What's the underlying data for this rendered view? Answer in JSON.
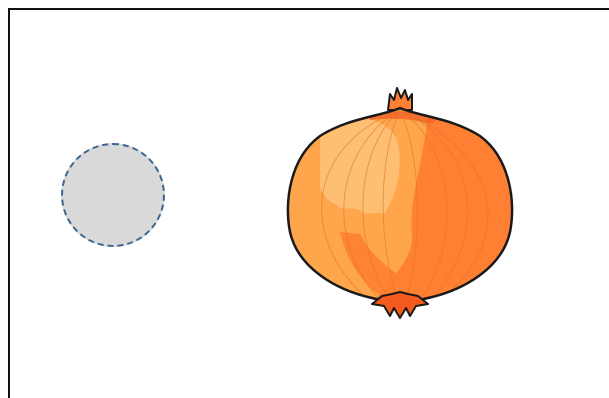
{
  "scene": {
    "drop_target": {
      "shape": "circle",
      "fill_color": "#d9d9d9",
      "border_color": "#3d6591",
      "border_style": "dashed"
    },
    "item": {
      "icon": "onion-icon",
      "colors": {
        "light": "#ffbf73",
        "mid": "#ffa64d",
        "dark": "#ff8033",
        "accent": "#f55a1e",
        "outline": "#1a1a1a"
      }
    }
  }
}
